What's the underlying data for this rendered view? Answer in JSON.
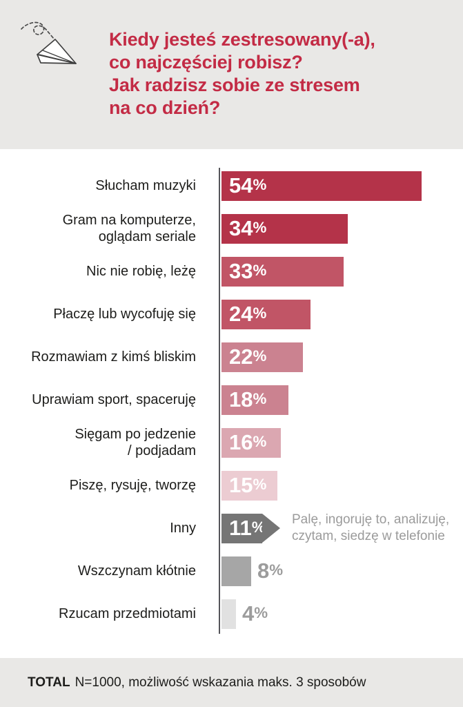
{
  "header": {
    "title": "Kiedy jesteś zestresowany(-a),\nco najczęściej robisz?\nJak radzisz sobie ze stresem\nna co dzień?",
    "icon": "paper-plane-icon"
  },
  "chart_data": {
    "type": "bar",
    "orientation": "horizontal",
    "unit": "%",
    "xlim": [
      0,
      60
    ],
    "grid": false,
    "legend": false,
    "title": "Kiedy jesteś zestresowany(-a), co najczęściej robisz? Jak radzisz sobie ze stresem na co dzień?",
    "categories": [
      "Słucham muzyki",
      "Gram na komputerze, oglądam seriale",
      "Nic nie robię, leżę",
      "Płaczę lub wycofuję się",
      "Rozmawiam z kimś bliskim",
      "Uprawiam sport, spaceruję",
      "Sięgam po jedzenie / podjadam",
      "Piszę, rysuję, tworzę",
      "Inny",
      "Wszczynam kłótnie",
      "Rzucam przedmiotami"
    ],
    "values": [
      54,
      34,
      33,
      24,
      22,
      18,
      16,
      15,
      11,
      8,
      4
    ],
    "items": [
      {
        "label": "Słucham muzyki",
        "value": 54,
        "color": "#b43349",
        "value_position": "inside",
        "shape": "rect"
      },
      {
        "label": "Gram na komputerze,\noglądam seriale",
        "value": 34,
        "color": "#b43349",
        "value_position": "inside",
        "shape": "rect"
      },
      {
        "label": "Nic nie robię, leżę",
        "value": 33,
        "color": "#c15566",
        "value_position": "inside",
        "shape": "rect"
      },
      {
        "label": "Płaczę lub wycofuję się",
        "value": 24,
        "color": "#c15566",
        "value_position": "inside",
        "shape": "rect"
      },
      {
        "label": "Rozmawiam z kimś bliskim",
        "value": 22,
        "color": "#cb8290",
        "value_position": "inside",
        "shape": "rect"
      },
      {
        "label": "Uprawiam sport, spaceruję",
        "value": 18,
        "color": "#cb8290",
        "value_position": "inside",
        "shape": "rect"
      },
      {
        "label": "Sięgam po jedzenie\n/ podjadam",
        "value": 16,
        "color": "#dba7b1",
        "value_position": "inside",
        "shape": "rect"
      },
      {
        "label": "Piszę, rysuję, tworzę",
        "value": 15,
        "color": "#ecccd2",
        "value_position": "inside",
        "shape": "rect"
      },
      {
        "label": "Inny",
        "value": 11,
        "color": "#757575",
        "value_position": "inside",
        "shape": "arrow",
        "annotation": "Palę, ingoruję to, analizuję,\nczytam, siedzę w telefonie"
      },
      {
        "label": "Wszczynam kłótnie",
        "value": 8,
        "color": "#a6a6a6",
        "value_position": "outside",
        "shape": "rect"
      },
      {
        "label": "Rzucam przedmiotami",
        "value": 4,
        "color": "#e1e1e1",
        "value_position": "outside",
        "shape": "rect"
      }
    ]
  },
  "footer": {
    "total_label": "TOTAL",
    "note": "N=1000, możliwość wskazania maks. 3 sposobów"
  }
}
